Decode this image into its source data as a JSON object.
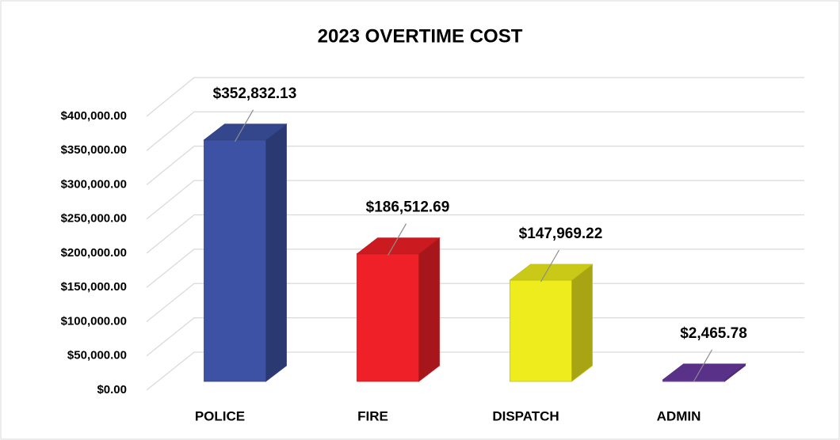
{
  "chart_data": {
    "type": "bar3d",
    "title": "2023 OVERTIME COST",
    "categories": [
      "POLICE",
      "FIRE",
      "DISPATCH",
      "ADMIN"
    ],
    "values": [
      352832.13,
      186512.69,
      147969.22,
      2465.78
    ],
    "value_labels": [
      "$352,832.13",
      "$186,512.69",
      "$147,969.22",
      "$2,465.78"
    ],
    "colors": [
      "#3d52a5",
      "#ef2027",
      "#eeec1c",
      "#6a3aa0"
    ],
    "ylim": [
      0,
      400000
    ],
    "yticks": [
      {
        "value": 0,
        "label": "$0.00"
      },
      {
        "value": 50000,
        "label": "$50,000.00"
      },
      {
        "value": 100000,
        "label": "$100,000.00"
      },
      {
        "value": 150000,
        "label": "$150,000.00"
      },
      {
        "value": 200000,
        "label": "$200,000.00"
      },
      {
        "value": 250000,
        "label": "$250,000.00"
      },
      {
        "value": 300000,
        "label": "$300,000.00"
      },
      {
        "value": 350000,
        "label": "$350,000.00"
      },
      {
        "value": 400000,
        "label": "$400,000.00"
      }
    ],
    "grid": true
  }
}
